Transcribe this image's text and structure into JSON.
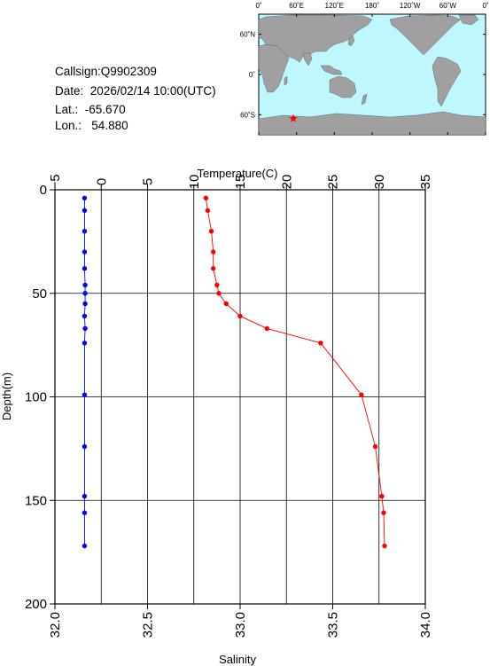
{
  "info": {
    "callsign_label": "Callsign:",
    "callsign": "Q9902309",
    "date_label": "Date:",
    "date": "2026/02/14 10:00(UTC)",
    "lat_label": "Lat.:",
    "lat": "-65.670",
    "lon_label": "Lon.:",
    "lon": "54.880"
  },
  "map": {
    "top_labels": [
      "0˚",
      "60˚E",
      "120˚E",
      "180˚",
      "120˚W",
      "60˚W",
      "0˚"
    ],
    "left_labels": [
      "60˚N",
      "0˚",
      "60˚S"
    ],
    "colors": {
      "ocean": "#bff7ff",
      "land": "#a0a0a0",
      "marker": "#ff0000"
    },
    "marker_lat": -65.67,
    "marker_lon": 54.88
  },
  "chart_data": {
    "type": "scatter",
    "ylabel": "Depth(m)",
    "xlabel_top": "Temperature(C)",
    "xlabel_bottom": "Salinity",
    "ylim": [
      0,
      200
    ],
    "temperature_lim": [
      -5,
      35
    ],
    "salinity_lim": [
      32.0,
      34.0
    ],
    "y_ticks": [
      "0",
      "50",
      "100",
      "150",
      "200"
    ],
    "temperature_ticks": [
      "−5",
      "0",
      "5",
      "10",
      "15",
      "20",
      "25",
      "30",
      "35"
    ],
    "salinity_ticks": [
      "32.0",
      "32.5",
      "33.0",
      "33.5",
      "34.0"
    ],
    "grid": true,
    "colors": {
      "temperature": "#ff0000",
      "salinity": "#0000ff"
    },
    "temperature_profile": {
      "depth": [
        4,
        10,
        20,
        30,
        38,
        46,
        50,
        55,
        61,
        67,
        74,
        99,
        124,
        148,
        156,
        172
      ],
      "values": [
        11.3,
        11.5,
        11.9,
        12.1,
        12.1,
        12.5,
        12.7,
        13.5,
        15.0,
        17.9,
        23.7,
        28.1,
        29.6,
        30.3,
        30.5,
        30.6
      ]
    },
    "salinity_profile": {
      "depth": [
        4,
        10,
        20,
        30,
        38,
        46,
        50,
        55,
        61,
        67,
        74,
        99,
        124,
        148,
        156,
        172
      ],
      "values": [
        32.16,
        32.16,
        32.16,
        32.16,
        32.16,
        32.163,
        32.163,
        32.163,
        32.16,
        32.163,
        32.16,
        32.16,
        32.16,
        32.16,
        32.16,
        32.16
      ]
    }
  }
}
